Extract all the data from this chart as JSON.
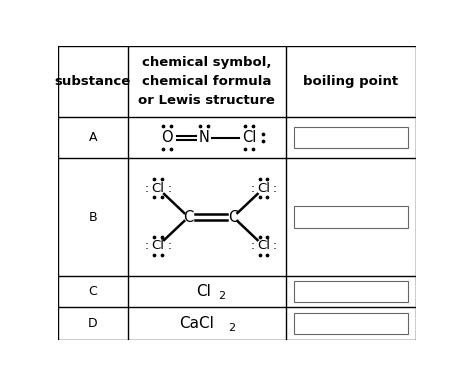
{
  "bg_color": "#ffffff",
  "grid_color": "#000000",
  "text_color": "#000000",
  "c0": 0.0,
  "c1": 0.195,
  "c2": 0.638,
  "c3": 1.0,
  "r0": 1.0,
  "r1": 0.758,
  "r2": 0.618,
  "r3": 0.218,
  "r4": 0.112,
  "r5": 0.0,
  "header_labels": [
    "substance",
    "chemical symbol,\nchemical formula\nor Lewis structure",
    "boiling point"
  ],
  "row_letters": [
    "A",
    "B",
    "C",
    "D"
  ],
  "lw": 1.0
}
